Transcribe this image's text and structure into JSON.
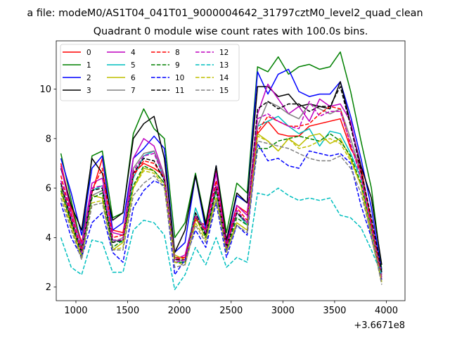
{
  "figure": {
    "suptitle": "a file: modeM0/AS1T04_041T01_9000004642_31797cztM0_level2_quad_clean",
    "offset_label": "+3.6671e8"
  },
  "chart_data": {
    "type": "line",
    "title": "Quadrant 0 module wise count rates with 100.0s bins.",
    "xlabel": "",
    "ylabel": "",
    "x_offset": 366710000,
    "xlim": [
      810,
      4180
    ],
    "ylim": [
      1.45,
      11.95
    ],
    "x_ticks": [
      1000,
      1500,
      2000,
      2500,
      3000,
      3500,
      4000
    ],
    "y_ticks": [
      2,
      4,
      6,
      8,
      10
    ],
    "legend_position": "upper-left",
    "grid": false,
    "x": [
      855,
      955,
      1055,
      1155,
      1255,
      1355,
      1455,
      1555,
      1655,
      1755,
      1855,
      1955,
      2055,
      2155,
      2255,
      2355,
      2455,
      2555,
      2655,
      2755,
      2855,
      2955,
      3055,
      3155,
      3255,
      3355,
      3455,
      3555,
      3655,
      3755,
      3855,
      3955
    ],
    "series": [
      {
        "name": "0",
        "color": "#ff0000",
        "dash": "solid",
        "values": [
          7.0,
          5.2,
          3.8,
          5.8,
          7.2,
          4.3,
          4.2,
          6.6,
          7.0,
          6.8,
          6.5,
          3.2,
          3.2,
          4.7,
          4.5,
          6.7,
          3.8,
          5.3,
          5.0,
          8.2,
          8.7,
          8.2,
          8.1,
          8.1,
          8.5,
          8.6,
          8.7,
          8.8,
          7.6,
          6.9,
          4.5,
          2.4
        ]
      },
      {
        "name": "1",
        "color": "#008000",
        "dash": "solid",
        "values": [
          7.4,
          5.5,
          3.6,
          7.3,
          7.5,
          4.8,
          5.0,
          8.2,
          9.2,
          8.4,
          8.0,
          4.0,
          4.6,
          6.6,
          4.6,
          6.9,
          4.2,
          6.2,
          5.8,
          10.9,
          10.7,
          11.3,
          10.6,
          10.9,
          11.0,
          10.8,
          10.9,
          11.5,
          9.9,
          7.9,
          6.0,
          2.7
        ]
      },
      {
        "name": "2",
        "color": "#0000ff",
        "dash": "solid",
        "values": [
          7.2,
          5.8,
          4.1,
          6.8,
          7.3,
          4.3,
          4.6,
          7.2,
          7.6,
          8.1,
          7.6,
          3.4,
          3.8,
          6.5,
          4.3,
          6.9,
          3.8,
          5.7,
          5.4,
          10.7,
          9.8,
          10.6,
          10.8,
          9.9,
          9.7,
          9.8,
          9.8,
          10.3,
          8.9,
          7.2,
          5.2,
          2.6
        ]
      },
      {
        "name": "3",
        "color": "#000000",
        "dash": "solid",
        "values": [
          6.8,
          5.3,
          4.3,
          7.2,
          6.6,
          4.7,
          5.0,
          8.0,
          8.6,
          8.9,
          7.2,
          3.4,
          4.3,
          6.5,
          4.5,
          6.9,
          3.9,
          5.8,
          5.4,
          10.1,
          10.1,
          9.7,
          9.8,
          9.3,
          9.4,
          9.3,
          9.2,
          10.3,
          8.6,
          6.9,
          5.6,
          2.9
        ]
      },
      {
        "name": "4",
        "color": "#bf00bf",
        "dash": "solid",
        "values": [
          6.9,
          5.0,
          3.7,
          6.2,
          6.4,
          4.2,
          4.1,
          7.2,
          8.0,
          7.7,
          6.5,
          3.1,
          3.3,
          5.0,
          4.3,
          6.6,
          3.7,
          5.3,
          4.9,
          9.0,
          10.2,
          9.6,
          9.0,
          9.3,
          8.7,
          9.6,
          9.3,
          9.4,
          8.7,
          6.7,
          4.7,
          2.5
        ]
      },
      {
        "name": "5",
        "color": "#00bfbf",
        "dash": "solid",
        "values": [
          6.2,
          4.8,
          3.5,
          5.9,
          6.1,
          3.9,
          3.8,
          6.4,
          7.3,
          7.5,
          6.3,
          3.0,
          3.0,
          5.2,
          4.1,
          5.9,
          3.6,
          5.0,
          4.5,
          8.5,
          8.7,
          8.9,
          8.5,
          8.2,
          8.4,
          7.7,
          8.3,
          8.2,
          7.4,
          6.4,
          4.3,
          2.3
        ]
      },
      {
        "name": "6",
        "color": "#bfbf00",
        "dash": "solid",
        "values": [
          6.0,
          4.5,
          3.2,
          5.7,
          5.6,
          3.5,
          3.8,
          6.0,
          6.8,
          6.7,
          6.2,
          3.3,
          3.1,
          4.8,
          4.0,
          5.6,
          3.5,
          4.6,
          4.3,
          8.2,
          7.9,
          7.5,
          8.0,
          7.7,
          8.1,
          8.2,
          7.8,
          8.0,
          7.2,
          6.1,
          4.0,
          2.2
        ]
      },
      {
        "name": "7",
        "color": "#808080",
        "dash": "solid",
        "values": [
          6.1,
          4.7,
          3.4,
          5.7,
          5.9,
          3.8,
          4.0,
          6.8,
          7.4,
          7.5,
          6.5,
          3.2,
          3.0,
          5.0,
          4.2,
          6.0,
          3.6,
          5.0,
          4.6,
          8.5,
          9.5,
          9.3,
          9.0,
          8.8,
          9.4,
          9.2,
          9.0,
          9.2,
          8.0,
          6.6,
          4.6,
          2.4
        ]
      },
      {
        "name": "8",
        "color": "#ff0000",
        "dash": "dashed",
        "values": [
          6.5,
          4.9,
          3.5,
          5.9,
          6.8,
          4.0,
          4.1,
          6.5,
          7.1,
          7.0,
          6.4,
          3.1,
          3.2,
          4.8,
          4.3,
          6.3,
          3.7,
          5.2,
          4.7,
          8.3,
          8.9,
          8.7,
          8.5,
          8.5,
          8.6,
          9.0,
          9.3,
          9.2,
          7.7,
          6.6,
          4.6,
          2.3
        ]
      },
      {
        "name": "9",
        "color": "#008000",
        "dash": "dashed",
        "values": [
          5.9,
          4.6,
          3.3,
          5.6,
          5.8,
          3.6,
          3.9,
          6.1,
          6.9,
          6.7,
          6.2,
          3.0,
          3.0,
          4.9,
          4.0,
          5.9,
          3.5,
          4.8,
          4.5,
          7.6,
          7.6,
          7.9,
          8.0,
          8.1,
          8.0,
          7.9,
          8.2,
          7.9,
          7.3,
          6.2,
          4.3,
          2.2
        ]
      },
      {
        "name": "10",
        "color": "#0000ff",
        "dash": "dashed",
        "values": [
          5.4,
          4.0,
          3.2,
          4.6,
          5.0,
          3.4,
          3.0,
          5.2,
          5.9,
          6.3,
          6.1,
          2.5,
          3.1,
          4.3,
          3.6,
          5.4,
          3.2,
          4.5,
          4.1,
          7.8,
          7.1,
          7.2,
          6.9,
          6.8,
          7.5,
          7.4,
          7.3,
          7.4,
          7.0,
          5.3,
          4.0,
          2.3
        ]
      },
      {
        "name": "11",
        "color": "#000000",
        "dash": "dashed",
        "values": [
          6.2,
          4.7,
          3.4,
          5.9,
          6.0,
          3.8,
          3.9,
          6.6,
          7.2,
          7.1,
          6.3,
          3.1,
          3.1,
          5.0,
          4.1,
          6.1,
          3.6,
          5.0,
          4.6,
          9.2,
          9.5,
          9.2,
          9.4,
          9.4,
          9.1,
          9.3,
          9.3,
          10.1,
          8.5,
          6.7,
          4.8,
          2.6
        ]
      },
      {
        "name": "12",
        "color": "#bf00bf",
        "dash": "dashed",
        "values": [
          6.3,
          4.8,
          3.4,
          6.0,
          6.1,
          3.9,
          3.9,
          6.7,
          7.3,
          7.4,
          6.4,
          3.0,
          3.1,
          4.9,
          4.2,
          6.1,
          3.6,
          5.1,
          4.6,
          8.8,
          9.0,
          8.7,
          8.5,
          8.4,
          9.5,
          8.9,
          9.1,
          9.1,
          7.8,
          6.4,
          4.4,
          2.3
        ]
      },
      {
        "name": "13",
        "color": "#00bfbf",
        "dash": "dashed",
        "values": [
          4.0,
          2.8,
          2.5,
          3.9,
          3.8,
          2.6,
          2.6,
          4.3,
          4.7,
          4.6,
          4.1,
          1.9,
          2.5,
          3.6,
          2.9,
          4.0,
          2.8,
          3.2,
          3.0,
          5.8,
          5.7,
          6.0,
          5.7,
          5.5,
          5.6,
          5.5,
          5.6,
          4.9,
          4.8,
          4.4,
          3.5,
          2.5
        ]
      },
      {
        "name": "14",
        "color": "#bfbf00",
        "dash": "dashed",
        "values": [
          5.8,
          4.4,
          3.2,
          5.4,
          5.5,
          3.5,
          3.6,
          6.0,
          6.7,
          6.6,
          6.1,
          3.0,
          2.9,
          4.6,
          3.9,
          5.6,
          3.4,
          4.6,
          4.3,
          8.1,
          7.9,
          7.5,
          8.0,
          7.6,
          7.7,
          7.9,
          8.0,
          7.8,
          7.1,
          6.1,
          4.2,
          2.2
        ]
      },
      {
        "name": "15",
        "color": "#808080",
        "dash": "dashed",
        "values": [
          5.6,
          4.3,
          3.1,
          5.3,
          5.4,
          3.5,
          3.5,
          5.7,
          6.2,
          6.5,
          6.0,
          2.8,
          2.9,
          4.5,
          3.8,
          5.5,
          3.4,
          4.5,
          4.2,
          7.9,
          7.8,
          7.7,
          7.6,
          7.4,
          7.2,
          7.1,
          7.1,
          7.3,
          6.8,
          5.8,
          4.1,
          2.1
        ]
      }
    ]
  }
}
